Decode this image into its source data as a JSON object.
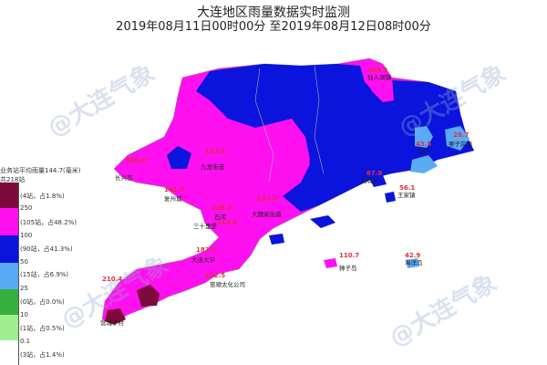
{
  "header": {
    "title": "大连地区雨量数据实时监测",
    "time_range": "2019年08月11日00时00分 至2019年08月12日08时00分"
  },
  "legend": {
    "average": "业务站平均雨量144.7(毫米)",
    "total": "共218站",
    "bins": [
      {
        "color": "#7d0a3c",
        "count": "(4站，占1.8%)"
      },
      {
        "threshold": "250",
        "color": "#ff10f0",
        "count": "(105站，占48.2%)"
      },
      {
        "threshold": "100",
        "color": "#0a14dc",
        "count": "(90站，占41.3%)"
      },
      {
        "threshold": "50",
        "color": "#5aaaf5",
        "count": "(15站，占6.9%)"
      },
      {
        "threshold": "25",
        "color": "#38b040",
        "count": "(0站，占0.0%)"
      },
      {
        "threshold": "10",
        "color": "#a0ee90",
        "count": "(1站，占0.5%)"
      },
      {
        "threshold": "0.1",
        "color": "#ffffff",
        "count": "(3站，占1.4%)"
      }
    ]
  },
  "watermark": "@大连气象",
  "stations": [
    {
      "name": "长兴岛",
      "value": "156.0"
    },
    {
      "name": "九龙街道",
      "value": "132.6"
    },
    {
      "name": "复州城",
      "value": "141.7"
    },
    {
      "name": "石河",
      "value": "128.3"
    },
    {
      "name": "大魏家街道",
      "value": "137.0"
    },
    {
      "name": "三十里堡",
      "value": "114.6"
    },
    {
      "name": "大连大学",
      "value": "182.5"
    },
    {
      "name": "营城子村",
      "value": "210.4"
    },
    {
      "name": "旅顺太化公司",
      "value": "102.5"
    },
    {
      "name": "仙人洞镇",
      "value": "160.9"
    },
    {
      "name": "栗子房镇",
      "value": "28.7"
    },
    {
      "name": "庄河",
      "value": "43.5"
    },
    {
      "name": "石城乡",
      "value": "67.8"
    },
    {
      "name": "王家镇",
      "value": "56.1"
    },
    {
      "name": "海洋岛",
      "value": "42.9"
    },
    {
      "name": "獐子岛",
      "value": "110.7"
    }
  ]
}
